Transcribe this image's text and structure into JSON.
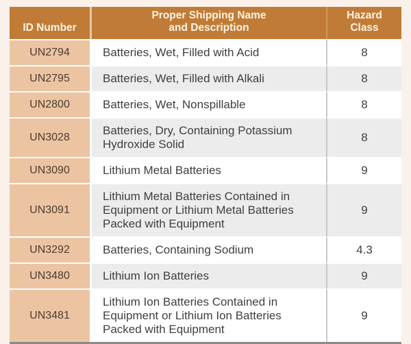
{
  "colors": {
    "header_bg": "#c07c36",
    "header_text": "#fdf3e6",
    "id_column_bg": "#ecc4a2",
    "id_text": "#4c3d33",
    "body_text": "#3f3f3f",
    "stripe_row_bg": "#ececec",
    "page_bg": "#f9f1ea",
    "bottom_rule": "#8b8885"
  },
  "chart_data": {
    "type": "table",
    "columns": [
      {
        "id": "id_number",
        "label": "ID Number"
      },
      {
        "id": "shipping_name",
        "label": "Proper Shipping Name\nand Description"
      },
      {
        "id": "hazard_class",
        "label": "Hazard\nClass"
      }
    ],
    "rows": [
      {
        "id_number": "UN2794",
        "description": "Batteries, Wet, Filled with Acid",
        "hazard_class": "8"
      },
      {
        "id_number": "UN2795",
        "description": "Batteries, Wet, Filled with Alkali",
        "hazard_class": "8"
      },
      {
        "id_number": "UN2800",
        "description": "Batteries, Wet, Nonspillable",
        "hazard_class": "8"
      },
      {
        "id_number": "UN3028",
        "description": "Batteries, Dry, Containing Potassium Hydroxide Solid",
        "hazard_class": "8"
      },
      {
        "id_number": "UN3090",
        "description": "Lithium Metal Batteries",
        "hazard_class": "9"
      },
      {
        "id_number": "UN3091",
        "description": "Lithium Metal Batteries Contained in Equipment or Lithium Metal Batteries Packed with Equipment",
        "hazard_class": "9"
      },
      {
        "id_number": "UN3292",
        "description": "Batteries, Containing Sodium",
        "hazard_class": "4.3"
      },
      {
        "id_number": "UN3480",
        "description": "Lithium Ion Batteries",
        "hazard_class": "9"
      },
      {
        "id_number": "UN3481",
        "description": "Lithium Ion Batteries Contained in Equipment or Lithium Ion Batteries Packed with Equipment",
        "hazard_class": "9"
      }
    ]
  }
}
